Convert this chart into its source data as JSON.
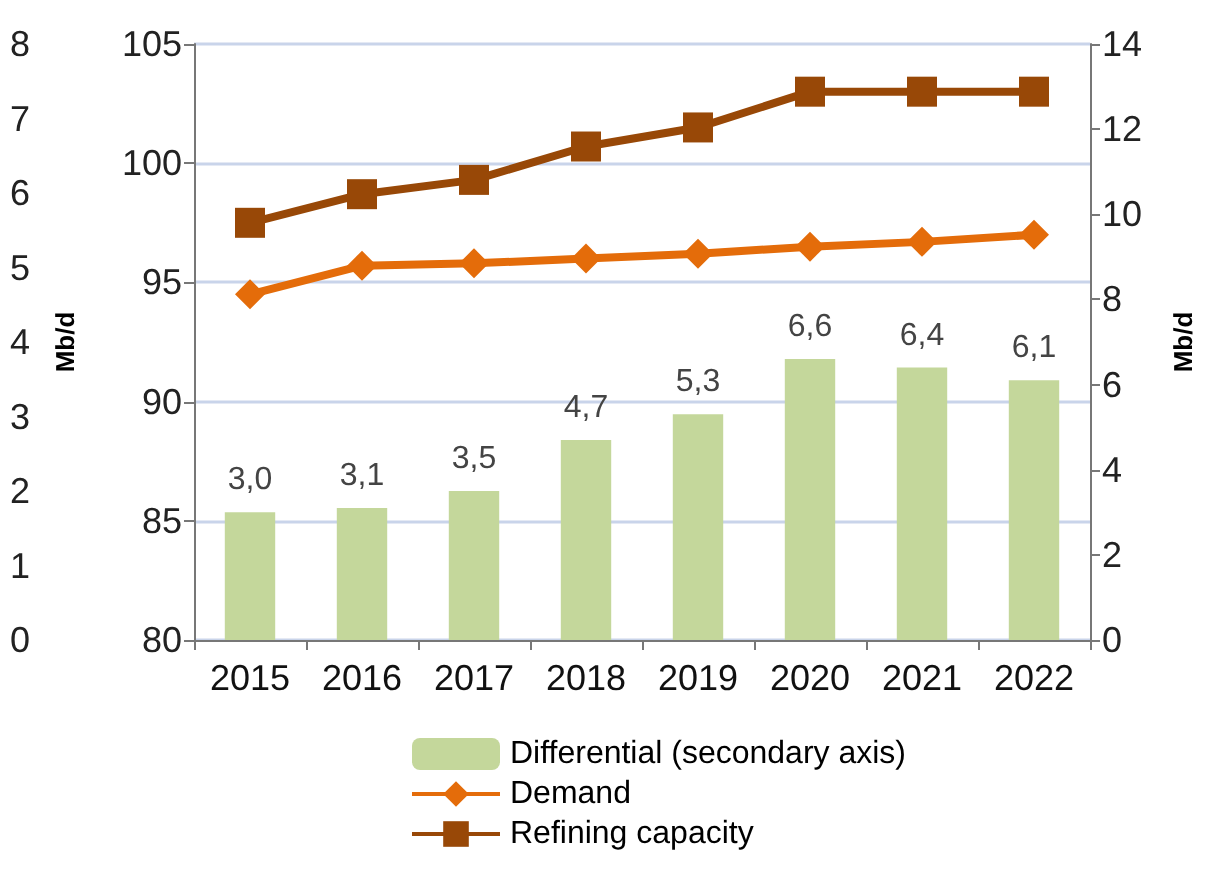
{
  "chart_data": {
    "type": "line",
    "categories": [
      "2015",
      "2016",
      "2017",
      "2018",
      "2019",
      "2020",
      "2021",
      "2022"
    ],
    "ylabel": "Mb/d",
    "y2label": "Mb/d",
    "ylim": [
      80,
      105
    ],
    "yticks": [
      80,
      85,
      90,
      95,
      100,
      105
    ],
    "y2lim": [
      0,
      14
    ],
    "y2ticks": [
      0,
      2,
      4,
      6,
      8,
      10,
      12,
      14
    ],
    "y3lim": [
      0,
      8
    ],
    "y3ticks": [
      0,
      1,
      2,
      3,
      4,
      5,
      6,
      7,
      8
    ],
    "grid": "y",
    "legend": "bottom",
    "series": [
      {
        "name": "Differential (secondary axis)",
        "type": "bar",
        "axis": "y2",
        "color": "#c4d79b",
        "values": [
          3.0,
          3.1,
          3.5,
          4.7,
          5.3,
          6.6,
          6.4,
          6.1
        ],
        "value_labels": [
          "3,0",
          "3,1",
          "3,5",
          "4,7",
          "5,3",
          "6,6",
          "6,4",
          "6,1"
        ]
      },
      {
        "name": "Demand",
        "marker": "diamond",
        "color": "#e46c0a",
        "values": [
          94.5,
          95.7,
          95.8,
          96.0,
          96.2,
          96.5,
          96.7,
          97.0
        ]
      },
      {
        "name": "Refining capacity",
        "marker": "square",
        "color": "#984807",
        "values": [
          97.5,
          98.7,
          99.3,
          100.7,
          101.5,
          103.0,
          103.0,
          103.0
        ]
      }
    ]
  }
}
